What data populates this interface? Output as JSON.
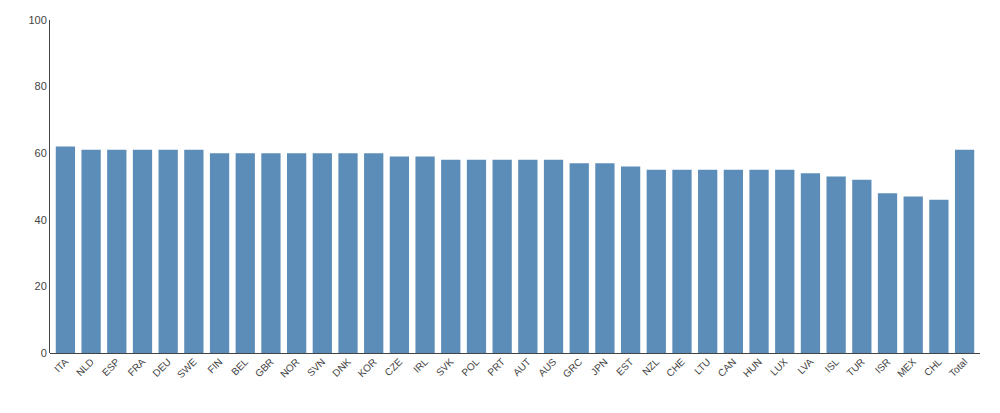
{
  "chart_data": {
    "type": "bar",
    "categories": [
      "ITA",
      "NLD",
      "ESP",
      "FRA",
      "DEU",
      "SWE",
      "FIN",
      "BEL",
      "GBR",
      "NOR",
      "SVN",
      "DNK",
      "KOR",
      "CZE",
      "IRL",
      "SVK",
      "POL",
      "PRT",
      "AUT",
      "AUS",
      "GRC",
      "JPN",
      "EST",
      "NZL",
      "CHE",
      "LTU",
      "CAN",
      "HUN",
      "LUX",
      "LVA",
      "ISL",
      "TUR",
      "ISR",
      "MEX",
      "CHL",
      "Total"
    ],
    "values": [
      62,
      61,
      61,
      61,
      61,
      61,
      60,
      60,
      60,
      60,
      60,
      60,
      60,
      59,
      59,
      58,
      58,
      58,
      58,
      58,
      57,
      57,
      56,
      55,
      55,
      55,
      55,
      55,
      55,
      54,
      53,
      52,
      48,
      47,
      46,
      61
    ],
    "color": "#5b8db8",
    "ylim": [
      0,
      100
    ],
    "yticks": [
      0,
      20,
      40,
      60,
      80,
      100
    ],
    "grid": false
  }
}
